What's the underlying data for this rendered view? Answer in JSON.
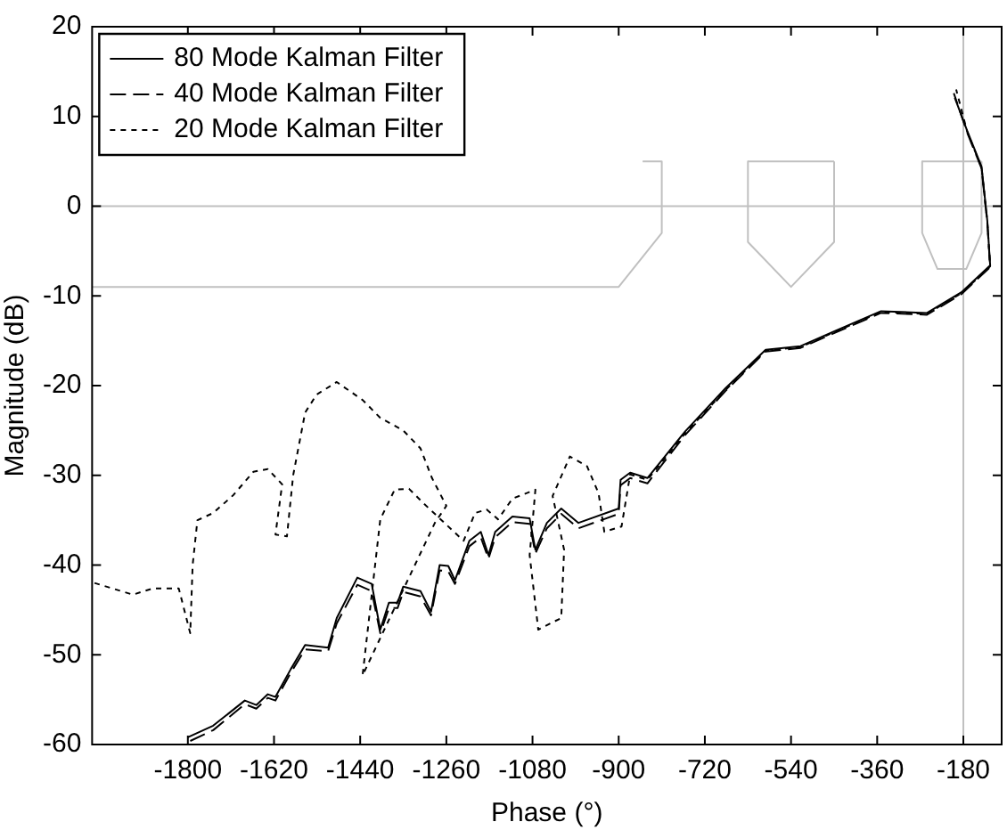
{
  "chart_data": {
    "type": "line",
    "xlabel": "Phase (°)",
    "ylabel": "Magnitude (dB)",
    "xlim": [
      -2000,
      -100
    ],
    "xticks": [
      -1800,
      -1620,
      -1440,
      -1260,
      -1080,
      -900,
      -720,
      -540,
      -360,
      -180
    ],
    "ylim": [
      -60,
      20
    ],
    "yticks": [
      -60,
      -50,
      -40,
      -30,
      -20,
      -10,
      0,
      10,
      20
    ],
    "grid": false,
    "legend": "top left",
    "marker": "none",
    "ref_lines": [
      {
        "axis": "y",
        "value": 0,
        "color": "#c0c0c0"
      },
      {
        "axis": "x",
        "value": -180,
        "color": "#c0c0c0"
      }
    ],
    "series": [
      {
        "name": "80 Mode Kalman Filter",
        "color": "#000000",
        "line_style": "solid",
        "x": [
          -1800,
          -1747,
          -1681,
          -1657,
          -1633,
          -1617,
          -1585,
          -1555,
          -1507,
          -1489,
          -1446,
          -1416,
          -1398,
          -1380,
          -1362,
          -1350,
          -1314,
          -1292,
          -1274,
          -1256,
          -1242,
          -1212,
          -1188,
          -1172,
          -1158,
          -1122,
          -1086,
          -1074,
          -1050,
          -1020,
          -984,
          -900,
          -896,
          -876,
          -840,
          -761,
          -677,
          -593,
          -520,
          -448,
          -352,
          -256,
          -184,
          -124,
          -130,
          -142,
          -172,
          -198
        ],
        "values": [
          -59.2,
          -57.9,
          -55.1,
          -55.6,
          -54.4,
          -54.7,
          -51.6,
          -48.9,
          -49.2,
          -45.9,
          -41.4,
          -42.1,
          -47.2,
          -44.2,
          -44.2,
          -42.4,
          -42.9,
          -45.2,
          -40.0,
          -40.1,
          -41.7,
          -37.3,
          -36.3,
          -38.9,
          -36.3,
          -34.6,
          -34.8,
          -38.3,
          -35.3,
          -33.7,
          -35.3,
          -33.7,
          -30.5,
          -29.7,
          -30.3,
          -25.1,
          -20.3,
          -16.0,
          -15.6,
          -13.9,
          -11.7,
          -11.9,
          -9.6,
          -6.6,
          -1.6,
          4.4,
          8.4,
          12.1
        ]
      },
      {
        "name": "40 Mode Kalman Filter",
        "color": "#000000",
        "line_style": "dashed",
        "x": [
          -1795,
          -1747,
          -1681,
          -1657,
          -1633,
          -1617,
          -1585,
          -1555,
          -1507,
          -1489,
          -1446,
          -1416,
          -1398,
          -1380,
          -1362,
          -1350,
          -1314,
          -1292,
          -1274,
          -1256,
          -1242,
          -1212,
          -1188,
          -1172,
          -1158,
          -1122,
          -1086,
          -1074,
          -1050,
          -1020,
          -984,
          -900,
          -896,
          -876,
          -840,
          -761,
          -677,
          -593,
          -520,
          -448,
          -352,
          -256,
          -184,
          -124,
          -130,
          -142,
          -172,
          -200
        ],
        "values": [
          -59.6,
          -58.4,
          -55.5,
          -56.0,
          -54.8,
          -55.1,
          -52.0,
          -49.4,
          -49.6,
          -46.5,
          -42.2,
          -42.9,
          -47.6,
          -44.8,
          -44.8,
          -43.0,
          -43.5,
          -45.6,
          -40.6,
          -40.7,
          -42.1,
          -37.9,
          -36.9,
          -39.3,
          -36.9,
          -35.2,
          -35.4,
          -38.7,
          -35.9,
          -34.3,
          -35.9,
          -34.3,
          -31.1,
          -30.3,
          -30.9,
          -25.5,
          -20.6,
          -16.2,
          -15.8,
          -14.1,
          -11.9,
          -12.1,
          -9.8,
          -6.8,
          -1.8,
          4.2,
          8.2,
          12.6
        ]
      },
      {
        "name": "20 Mode Kalman Filter",
        "color": "#000000",
        "line_style": "dotted",
        "x": [
          -1995,
          -1915,
          -1873,
          -1819,
          -1795,
          -1790,
          -1780,
          -1747,
          -1705,
          -1663,
          -1633,
          -1603,
          -1617,
          -1593,
          -1580,
          -1555,
          -1531,
          -1489,
          -1435,
          -1398,
          -1350,
          -1314,
          -1290,
          -1260,
          -1284,
          -1435,
          -1398,
          -1368,
          -1338,
          -1310,
          -1224,
          -1200,
          -1176,
          -1152,
          -1122,
          -1074,
          -1086,
          -1068,
          -1020,
          -1014,
          -1038,
          -1002,
          -966,
          -942,
          -930,
          -894,
          -876,
          -840,
          -761,
          -677,
          -593,
          -520,
          -448,
          -352,
          -256,
          -184,
          -124,
          -130,
          -142,
          -172,
          -195
        ],
        "values": [
          -42.0,
          -43.3,
          -42.6,
          -42.6,
          -47.6,
          -40.0,
          -35.0,
          -34.2,
          -32.2,
          -29.6,
          -29.3,
          -31.0,
          -36.6,
          -36.8,
          -30.0,
          -23.0,
          -21.0,
          -19.6,
          -21.6,
          -23.6,
          -25.0,
          -27.0,
          -30.3,
          -33.4,
          -35.3,
          -52.3,
          -34.9,
          -31.6,
          -31.5,
          -33.0,
          -37.3,
          -34.2,
          -33.8,
          -34.9,
          -32.6,
          -31.6,
          -38.9,
          -47.2,
          -45.9,
          -38.3,
          -32.3,
          -27.9,
          -29.0,
          -32.0,
          -36.3,
          -35.7,
          -29.9,
          -30.5,
          -25.3,
          -20.5,
          -16.1,
          -15.7,
          -14.0,
          -11.8,
          -12.0,
          -9.7,
          -6.7,
          -1.7,
          4.3,
          8.3,
          13.0
        ]
      },
      {
        "color": "#c0c0c0",
        "line_style": "solid",
        "x": [
          -2000,
          -900,
          -810,
          -810,
          -850
        ],
        "values": [
          -9,
          -9,
          -3,
          5,
          5
        ]
      },
      {
        "color": "#c0c0c0",
        "line_style": "solid",
        "x": [
          -630,
          -630,
          -540,
          -450,
          -450
        ],
        "values": [
          5,
          -4,
          -9,
          -4,
          5
        ]
      },
      {
        "color": "#c0c0c0",
        "line_style": "solid",
        "x": [
          -630,
          -450
        ],
        "values": [
          5,
          5
        ]
      },
      {
        "color": "#c0c0c0",
        "line_style": "solid",
        "x": [
          -266,
          -266,
          -234,
          -174,
          -142,
          -142
        ],
        "values": [
          5,
          -3,
          -7,
          -7,
          -3,
          5
        ]
      },
      {
        "color": "#c0c0c0",
        "line_style": "solid",
        "x": [
          -266,
          -142
        ],
        "values": [
          5,
          5
        ]
      }
    ]
  }
}
